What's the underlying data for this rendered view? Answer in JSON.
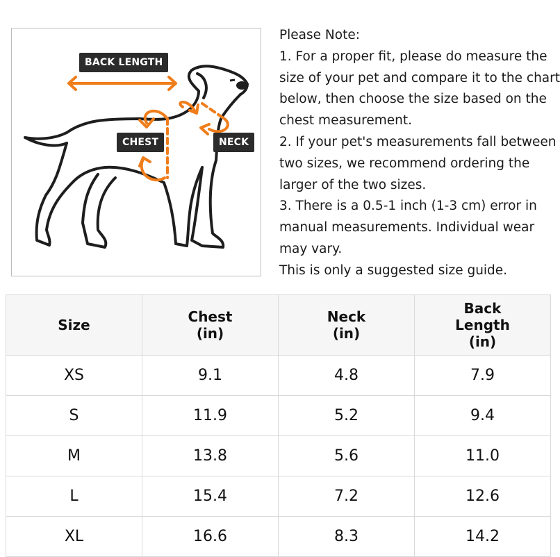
{
  "figure": {
    "labels": {
      "back_length": "BACK LENGTH",
      "chest": "CHEST",
      "neck": "NECK"
    },
    "colors": {
      "arrow": "#ef7d1a",
      "outline": "#1e1e1e",
      "label_bg": "#2b2b2b"
    }
  },
  "notes": {
    "lines": [
      "Please Note:",
      "1. For a proper fit, please do measure the",
      "size of your pet and compare it to the chart",
      "below, then choose the size based on the",
      "chest measurement.",
      "2. If your pet's measurements fall between",
      "two sizes, we recommend ordering the",
      "larger of the two sizes.",
      "3. There is a 0.5-1 inch (1-3 cm) error in",
      "manual measurements. Individual wear",
      "may vary.",
      "This is only a suggested size guide."
    ]
  },
  "table": {
    "headers": [
      [
        "Size"
      ],
      [
        "Chest",
        "(in)"
      ],
      [
        "Neck",
        "(in)"
      ],
      [
        "Back",
        "Length",
        "(in)"
      ]
    ],
    "rows": [
      [
        "XS",
        "9.1",
        "4.8",
        "7.9"
      ],
      [
        "S",
        "11.9",
        "5.2",
        "9.4"
      ],
      [
        "M",
        "13.8",
        "5.6",
        "11.0"
      ],
      [
        "L",
        "15.4",
        "7.2",
        "12.6"
      ],
      [
        "XL",
        "16.6",
        "8.3",
        "14.2"
      ]
    ]
  }
}
